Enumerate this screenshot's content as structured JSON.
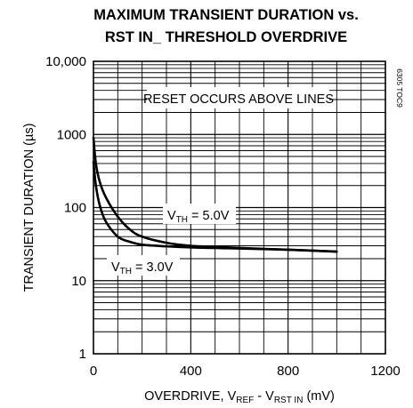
{
  "chart_data": {
    "type": "line",
    "title_line1": "MAXIMUM TRANSIENT DURATION vs.",
    "title_line2": "RST IN_ THRESHOLD OVERDRIVE",
    "xlabel": {
      "prefix": "OVERDRIVE, V",
      "sub1": "REF",
      "mid": " - V",
      "sub2": "RST IN",
      "suffix": " (mV)"
    },
    "ylabel": "TRANSIENT DURATION (µs)",
    "xlim": [
      0,
      1200
    ],
    "ylim": [
      1,
      10000
    ],
    "yscale": "log",
    "x_ticks": [
      0,
      400,
      800,
      1200
    ],
    "x_tick_labels": [
      "0",
      "400",
      "800",
      "1200"
    ],
    "y_ticks": [
      1,
      10,
      100,
      1000,
      10000
    ],
    "y_tick_labels": [
      "1",
      "10",
      "100",
      "1000",
      "10,000"
    ],
    "grid": true,
    "annotation": "RESET OCCURS ABOVE LINES",
    "figure_id": "6305 TOC9",
    "series": [
      {
        "name_main": "V",
        "name_sub": "TH",
        "name_rest": " = 5.0V",
        "x": [
          0,
          10,
          25,
          50,
          100,
          150,
          200,
          300,
          400,
          500,
          600,
          800,
          1000
        ],
        "y": [
          900,
          400,
          230,
          140,
          75,
          50,
          40,
          33,
          30,
          29,
          28,
          26.5,
          25
        ]
      },
      {
        "name_main": "V",
        "name_sub": "TH",
        "name_rest": " = 3.0V",
        "x": [
          0,
          10,
          25,
          50,
          100,
          150,
          200,
          300,
          400,
          500,
          600,
          800,
          1000
        ],
        "y": [
          420,
          200,
          110,
          65,
          40,
          34,
          31,
          29.5,
          28.5,
          28,
          27.5,
          26.5,
          25
        ]
      }
    ]
  }
}
